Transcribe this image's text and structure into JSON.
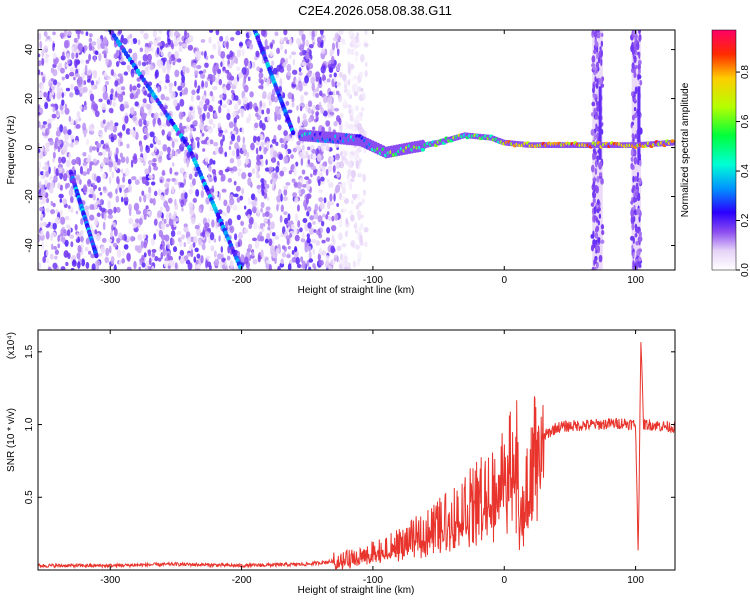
{
  "title": "C2E4.2026.058.08.38.G11",
  "chart_data": [
    {
      "type": "heatmap",
      "xlabel": "Height of straight line (km)",
      "ylabel": "Frequency (Hz)",
      "xlim": [
        -355,
        130
      ],
      "ylim": [
        -50,
        48
      ],
      "xticks": [
        -300,
        -200,
        -100,
        0,
        100
      ],
      "yticks": [
        -40,
        -20,
        0,
        20,
        40
      ],
      "colorbar": {
        "label": "Normalized spectral amplitude",
        "range": [
          0,
          0.97
        ],
        "ticks": [
          0.0,
          0.2,
          0.4,
          0.6,
          0.8
        ],
        "colormap": [
          "#ffffff",
          "#e6d3f7",
          "#8a4cf0",
          "#2a00ff",
          "#0094ff",
          "#00ffd5",
          "#00ff3c",
          "#b5ff00",
          "#ffcc00",
          "#ff2a00",
          "#ff0066"
        ]
      },
      "features": {
        "traces": [
          {
            "name": "",
            "x": [
              -300,
              -240,
              -200
            ],
            "y": [
              48,
              0,
              -50
            ]
          },
          {
            "name": "",
            "x": [
              -190,
              -160
            ],
            "y": [
              48,
              5
            ]
          },
          {
            "name": "",
            "x": [
              -330,
              -310
            ],
            "y": [
              -10,
              -45
            ]
          }
        ],
        "ridge": {
          "x": [
            -155,
            -130,
            -110,
            -90,
            -70,
            -50,
            -30,
            -10,
            0,
            20,
            40,
            70,
            100,
            130
          ],
          "y": [
            5,
            4,
            3,
            -2,
            0,
            2,
            5,
            4,
            2,
            1,
            1,
            1,
            1,
            2
          ]
        },
        "noise_region_x": [
          -355,
          -125
        ],
        "vertical_bands_x": [
          [
            67,
            75
          ],
          [
            97,
            104
          ]
        ]
      }
    },
    {
      "type": "line",
      "xlabel": "Height of straight line (km)",
      "ylabel": "SNR (10 * v/v)",
      "yscale_label": "(x10⁴)",
      "xlim": [
        -355,
        130
      ],
      "ylim": [
        0,
        1.65
      ],
      "xticks": [
        -300,
        -200,
        -100,
        0,
        100
      ],
      "yticks": [
        0.5,
        1.0,
        1.5
      ],
      "series": [
        {
          "name": "",
          "color": "#e8342c",
          "x": [
            -355,
            -300,
            -250,
            -200,
            -150,
            -120,
            -100,
            -80,
            -60,
            -40,
            -20,
            -10,
            0,
            10,
            12,
            20,
            30,
            40,
            50,
            70,
            90,
            100,
            102,
            104,
            106,
            110,
            130
          ],
          "y": [
            0.03,
            0.03,
            0.04,
            0.03,
            0.04,
            0.07,
            0.12,
            0.18,
            0.28,
            0.4,
            0.55,
            0.6,
            0.72,
            0.85,
            0.3,
            0.85,
            0.92,
            0.98,
            0.99,
            1.0,
            1.01,
            1.0,
            0.1,
            1.6,
            1.0,
            1.0,
            0.98
          ]
        }
      ]
    }
  ]
}
